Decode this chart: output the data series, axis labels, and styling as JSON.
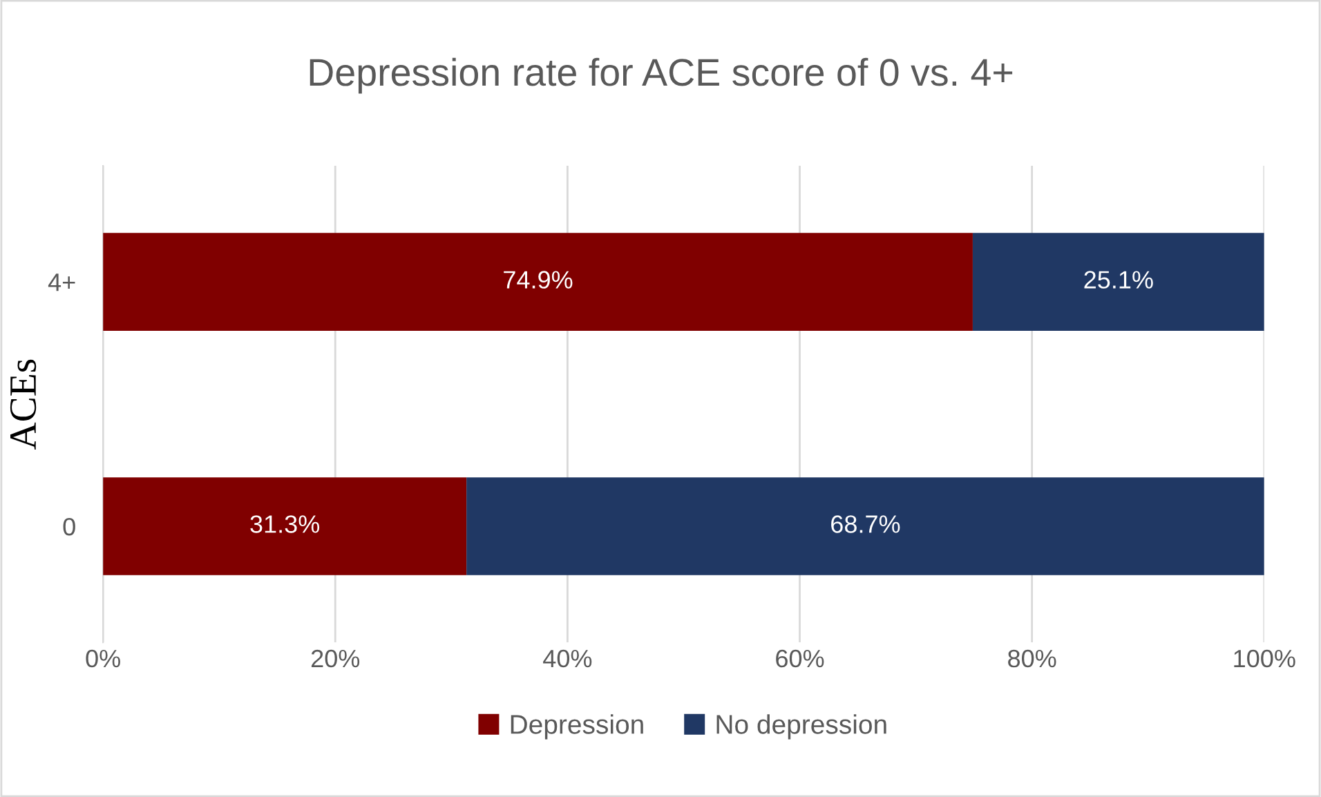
{
  "chart_data": {
    "type": "bar",
    "orientation": "horizontal",
    "stacked": true,
    "title": "Depression rate for ACE score of 0 vs. 4+",
    "ylabel": "ACEs",
    "categories": [
      "4+",
      "0"
    ],
    "series": [
      {
        "name": "Depression",
        "color": "#800000",
        "values": [
          74.9,
          31.3
        ],
        "value_labels": [
          "74.9%",
          "31.3%"
        ]
      },
      {
        "name": "No depression",
        "color": "#203864",
        "values": [
          25.1,
          68.7
        ],
        "value_labels": [
          "25.1%",
          "68.7%"
        ]
      }
    ],
    "xlim": [
      0,
      100
    ],
    "xticks": [
      {
        "value": 0,
        "label": "0%"
      },
      {
        "value": 20,
        "label": "20%"
      },
      {
        "value": 40,
        "label": "40%"
      },
      {
        "value": 60,
        "label": "60%"
      },
      {
        "value": 80,
        "label": "80%"
      },
      {
        "value": 100,
        "label": "100%"
      }
    ],
    "grid": "x",
    "legend": "bottom"
  }
}
